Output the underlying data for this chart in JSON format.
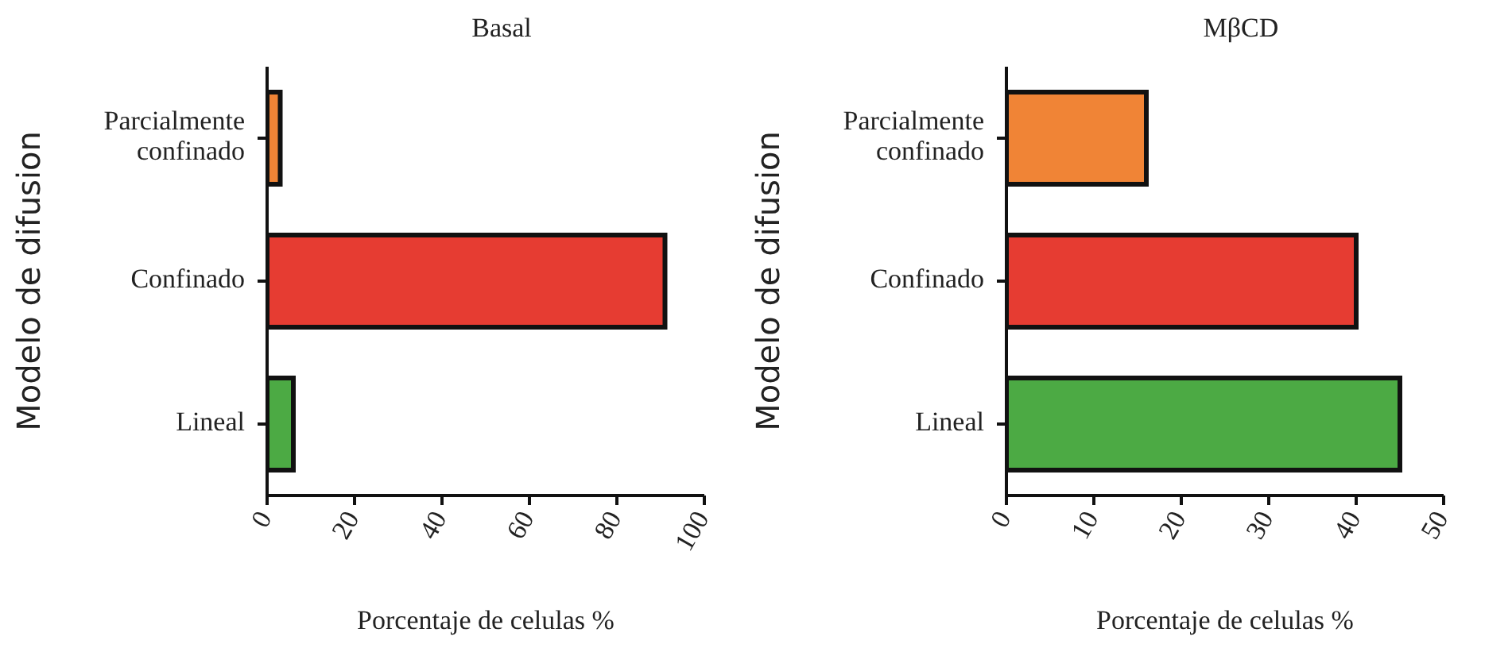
{
  "chart_data": [
    {
      "type": "bar",
      "orientation": "horizontal",
      "title": "Basal",
      "xlabel": "Porcentaje de celulas %",
      "ylabel": "Modelo de difusion",
      "categories": [
        "Parcialmente confinado",
        "Confinado",
        "Lineal"
      ],
      "values": [
        3,
        91,
        6
      ],
      "colors": [
        "#f08436",
        "#e63c32",
        "#4caa44"
      ],
      "xlim": [
        0,
        100
      ],
      "xticks": [
        0,
        20,
        40,
        60,
        80,
        100
      ],
      "grid": false,
      "legend": false
    },
    {
      "type": "bar",
      "orientation": "horizontal",
      "title": "MβCD",
      "xlabel": "Porcentaje de celulas %",
      "ylabel": "Modelo de difusion",
      "categories": [
        "Parcialmente confinado",
        "Confinado",
        "Lineal"
      ],
      "values": [
        16,
        40,
        45
      ],
      "colors": [
        "#f08436",
        "#e63c32",
        "#4caa44"
      ],
      "xlim": [
        0,
        50
      ],
      "xticks": [
        0,
        10,
        20,
        30,
        40,
        50
      ],
      "grid": false,
      "legend": false
    }
  ]
}
